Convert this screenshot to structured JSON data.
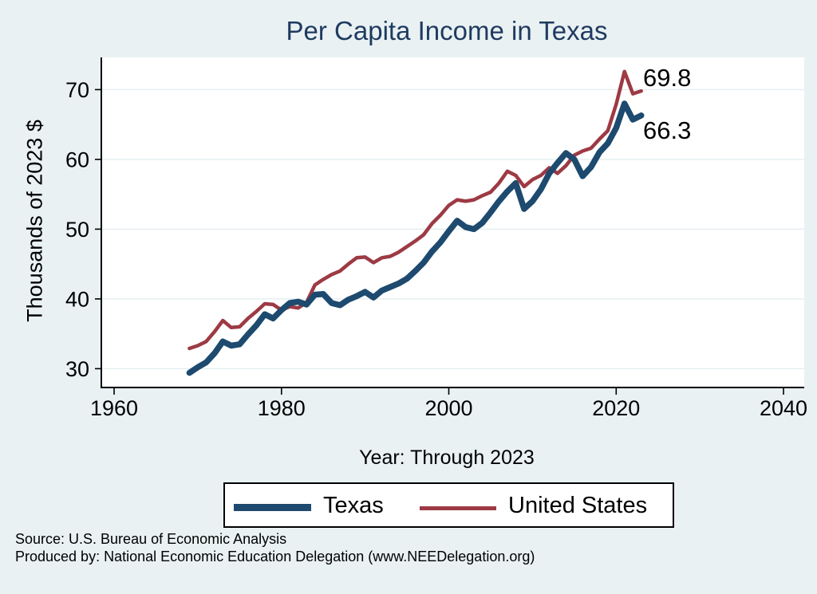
{
  "page": {
    "background": "#e9f1f3"
  },
  "chart_data": {
    "type": "line",
    "title": "Per Capita Income in Texas",
    "title_color": "#1f3a5f",
    "xlabel": "Year: Through 2023",
    "ylabel": "Thousands of 2023 $",
    "xticks": [
      1960,
      1980,
      2000,
      2020,
      2040
    ],
    "yticks": [
      30,
      40,
      50,
      60,
      70
    ],
    "xlim": [
      1955.5,
      2042.5
    ],
    "ylim": [
      27.3,
      74.6
    ],
    "grid": true,
    "gridline_color": "#e3edf0",
    "plot_background": "#ffffff",
    "legend_position": "bottom",
    "years": [
      1969,
      1970,
      1971,
      1972,
      1973,
      1974,
      1975,
      1976,
      1977,
      1978,
      1979,
      1980,
      1981,
      1982,
      1983,
      1984,
      1985,
      1986,
      1987,
      1988,
      1989,
      1990,
      1991,
      1992,
      1993,
      1994,
      1995,
      1996,
      1997,
      1998,
      1999,
      2000,
      2001,
      2002,
      2003,
      2004,
      2005,
      2006,
      2007,
      2008,
      2009,
      2010,
      2011,
      2012,
      2013,
      2014,
      2015,
      2016,
      2017,
      2018,
      2019,
      2020,
      2021,
      2022,
      2023
    ],
    "series": [
      {
        "name": "Texas",
        "color": "#1d4a6e",
        "stroke_width": 7.5,
        "end_label": "66.3",
        "values": [
          29.4,
          30.2,
          30.9,
          32.2,
          33.9,
          33.3,
          33.5,
          34.9,
          36.2,
          37.8,
          37.2,
          38.4,
          39.4,
          39.6,
          39.2,
          40.6,
          40.7,
          39.4,
          39.1,
          39.9,
          40.4,
          41.0,
          40.2,
          41.2,
          41.7,
          42.2,
          42.9,
          44.0,
          45.2,
          46.8,
          48.1,
          49.7,
          51.2,
          50.3,
          50.0,
          50.9,
          52.4,
          54.0,
          55.4,
          56.6,
          52.9,
          54.0,
          55.7,
          58.0,
          59.5,
          60.9,
          60.0,
          57.6,
          58.9,
          61.0,
          62.3,
          64.5,
          68.0,
          65.7,
          66.3
        ]
      },
      {
        "name": "United States",
        "color": "#9d3a44",
        "stroke_width": 4.5,
        "end_label": "69.8",
        "values": [
          32.9,
          33.3,
          33.9,
          35.3,
          36.9,
          35.9,
          36.0,
          37.2,
          38.2,
          39.3,
          39.2,
          38.4,
          38.9,
          38.7,
          39.5,
          42.0,
          42.8,
          43.5,
          44.0,
          45.0,
          45.9,
          46.0,
          45.2,
          45.9,
          46.1,
          46.7,
          47.5,
          48.3,
          49.2,
          50.8,
          52.0,
          53.4,
          54.2,
          54.0,
          54.2,
          54.8,
          55.3,
          56.6,
          58.3,
          57.7,
          56.1,
          57.1,
          57.7,
          58.8,
          58.0,
          59.1,
          60.6,
          61.2,
          61.6,
          62.9,
          64.1,
          67.9,
          72.6,
          69.4,
          69.8
        ]
      }
    ]
  },
  "footer": {
    "source": "Source: U.S. Bureau of Economic Analysis",
    "produced_by": "Produced by: National Economic Education Delegation (www.NEEDelegation.org)"
  }
}
